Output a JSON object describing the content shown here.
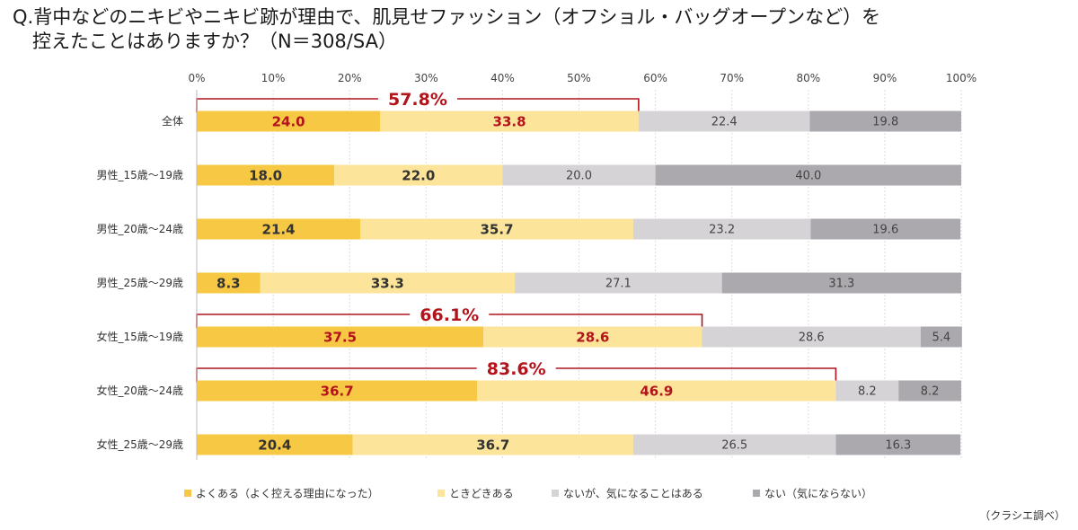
{
  "title_line1": "Q.背中などのニキビやニキビ跡が理由で、肌見せファッション（オフショル・バッグオープンなど）を",
  "title_line2": "控えたことはありますか？（N＝308/SA）",
  "source": "（クラシエ調べ）",
  "chart_data": {
    "type": "bar",
    "orientation": "horizontal",
    "stacked": true,
    "x_ticks": [
      "0%",
      "10%",
      "20%",
      "30%",
      "40%",
      "50%",
      "60%",
      "70%",
      "80%",
      "90%",
      "100%"
    ],
    "xlim": [
      0,
      100
    ],
    "grid": true,
    "legend_position": "bottom",
    "categories": [
      "全体",
      "男性_15歳～19歳",
      "男性_20歳～24歳",
      "男性_25歳～29歳",
      "女性_15歳～19歳",
      "女性_20歳～24歳",
      "女性_25歳～29歳"
    ],
    "series": [
      {
        "name": "よくある（よく控える理由になった）",
        "color": "#F6C844",
        "label_color": "#B3131B",
        "values": [
          24.0,
          18.0,
          21.4,
          8.3,
          37.5,
          36.7,
          20.4
        ]
      },
      {
        "name": "ときどきある",
        "color": "#FCE59A",
        "label_color": "#B3131B",
        "values": [
          33.8,
          22.0,
          35.7,
          33.3,
          28.6,
          46.9,
          36.7
        ]
      },
      {
        "name": "ないが、気になることはある",
        "color": "#D5D3D6",
        "label_color": "#444444",
        "values": [
          22.4,
          20.0,
          23.2,
          27.1,
          28.6,
          8.2,
          26.5
        ]
      },
      {
        "name": "ない（気にならない）",
        "color": "#ABA9AD",
        "label_color": "#444444",
        "values": [
          19.8,
          40.0,
          19.6,
          31.3,
          5.4,
          8.2,
          16.3
        ]
      }
    ],
    "highlight_rows": [
      0,
      4,
      5
    ],
    "brackets": [
      {
        "row": 0,
        "label": "57.8%",
        "value": 57.8
      },
      {
        "row": 4,
        "label": "66.1%",
        "value": 66.1
      },
      {
        "row": 5,
        "label": "83.6%",
        "value": 83.6
      }
    ],
    "accent_color": "#B3131B"
  }
}
